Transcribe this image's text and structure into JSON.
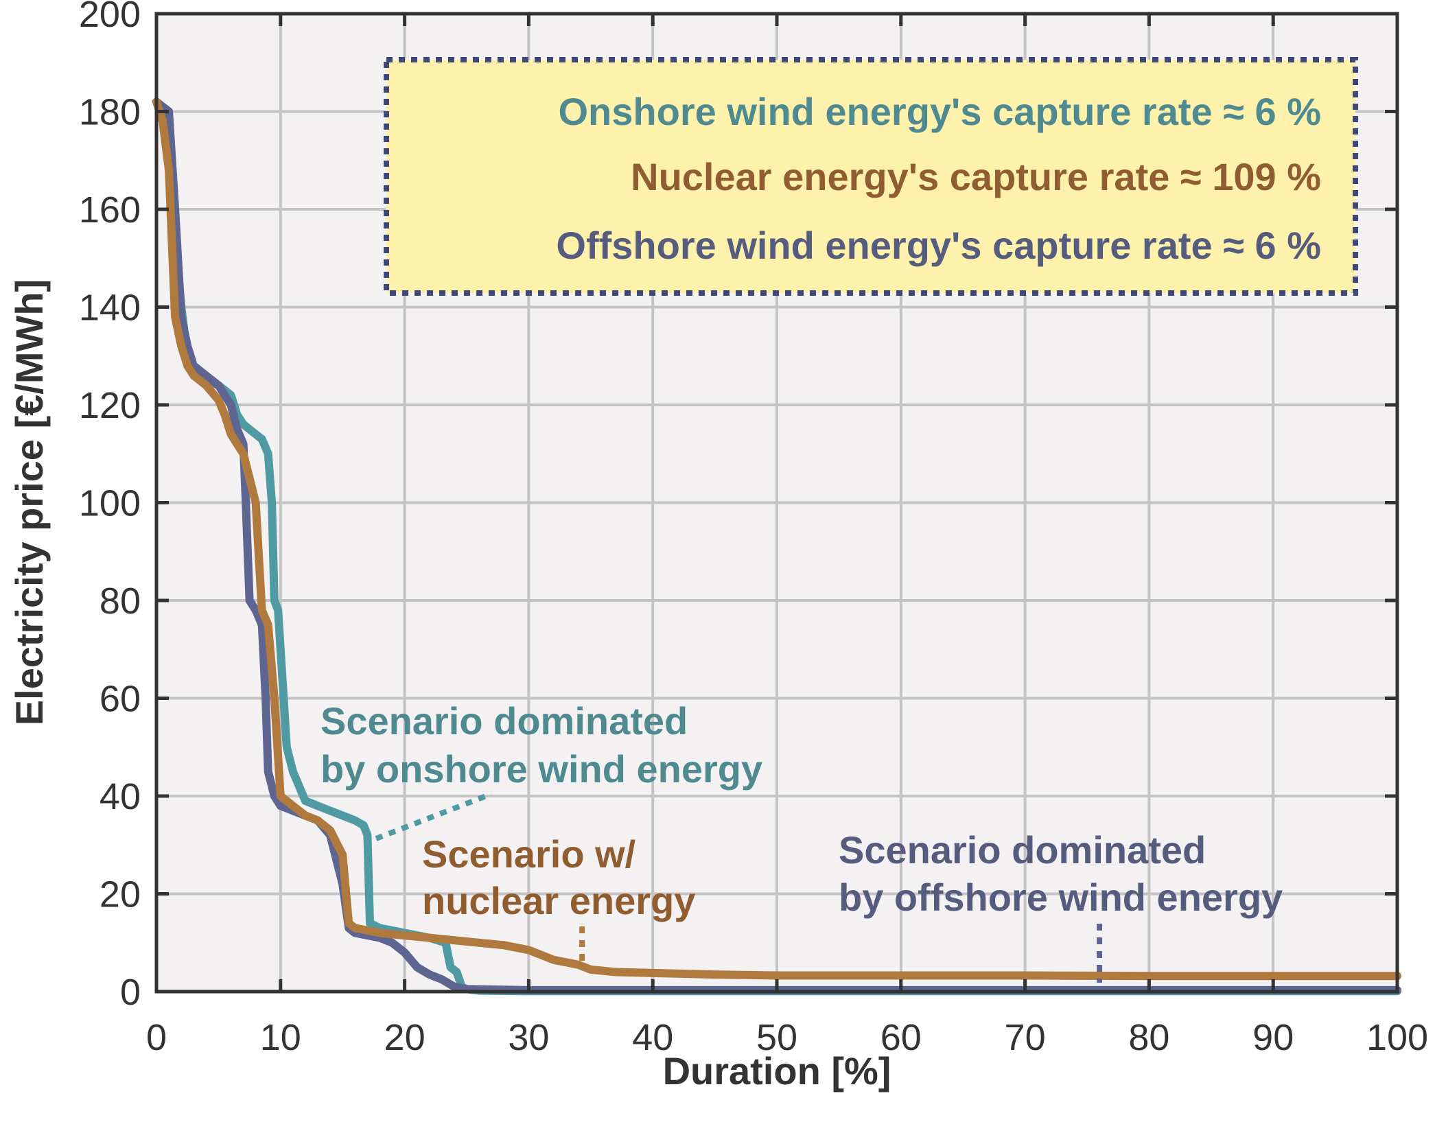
{
  "chart_data": {
    "type": "line",
    "xlabel": "Duration [%]",
    "ylabel": "Electricity price [€/MWh]",
    "xlim": [
      0,
      100
    ],
    "ylim": [
      0,
      200
    ],
    "xticks": [
      0,
      10,
      20,
      30,
      40,
      50,
      60,
      70,
      80,
      90,
      100
    ],
    "yticks": [
      0,
      20,
      40,
      60,
      80,
      100,
      120,
      140,
      160,
      180,
      200
    ],
    "grid": true,
    "colors": {
      "onshore": "#4f9aa3",
      "nuclear": "#b07a3f",
      "offshore": "#5d6590",
      "box_fill": "#fdf1ac",
      "box_border": "#3f4678",
      "plot_bg": "#f4f1f3",
      "grid": "#c4c4c4"
    },
    "series": [
      {
        "key": "onshore",
        "x": [
          0,
          0.5,
          1,
          1.5,
          2,
          2.5,
          3,
          4,
          5,
          6,
          6.5,
          7,
          7.5,
          8,
          8.5,
          9,
          9.3,
          9.5,
          9.8,
          10,
          10.5,
          11,
          11.5,
          12,
          13,
          14,
          15,
          16,
          16.7,
          17,
          17.2,
          18,
          20,
          22,
          23.3,
          23.7,
          24.2,
          24.6,
          25,
          26,
          30,
          100
        ],
        "y": [
          182,
          180,
          178,
          155,
          140,
          130,
          127,
          125,
          124,
          122,
          118,
          116,
          115,
          114,
          113,
          110,
          100,
          80,
          78,
          70,
          50,
          45,
          42,
          39,
          38,
          37,
          36,
          35,
          34,
          32,
          14,
          13,
          12,
          11,
          10,
          5,
          4,
          1,
          0.5,
          0.2,
          0.1,
          0.1
        ]
      },
      {
        "key": "nuclear",
        "x": [
          0,
          0.5,
          1,
          1.5,
          2,
          2.5,
          3,
          4,
          5,
          5.5,
          6,
          6.5,
          7,
          7.5,
          8,
          8.5,
          9,
          9.5,
          10,
          11,
          12,
          13,
          14,
          15,
          15.5,
          16,
          17,
          18,
          20,
          22,
          24,
          26,
          28,
          30,
          31,
          32,
          33,
          34,
          35,
          37,
          40,
          45,
          50,
          60,
          70,
          80,
          90,
          100
        ],
        "y": [
          182,
          178,
          168,
          138,
          132,
          128,
          126,
          124,
          121,
          118,
          114,
          112,
          110,
          105,
          100,
          78,
          75,
          60,
          40,
          38,
          36,
          35,
          33,
          28,
          14,
          13,
          12.5,
          12,
          11.5,
          11,
          10.5,
          10,
          9.5,
          8.5,
          7.5,
          6.5,
          6,
          5.5,
          4.5,
          4,
          3.8,
          3.5,
          3.3,
          3.3,
          3.3,
          3.2,
          3.2,
          3.2
        ]
      },
      {
        "key": "offshore",
        "x": [
          0,
          0.5,
          1,
          1.5,
          2,
          2.5,
          3,
          4,
          5,
          6,
          6.5,
          7,
          7.2,
          7.5,
          8,
          8.5,
          8.8,
          9,
          9.5,
          10,
          11,
          12,
          13,
          14,
          15,
          15.5,
          16,
          18,
          19,
          20,
          21,
          22,
          23,
          24,
          25,
          30,
          40,
          50,
          60,
          70,
          80,
          90,
          100
        ],
        "y": [
          182,
          181,
          180,
          160,
          138,
          132,
          128,
          126,
          124,
          120,
          115,
          112,
          100,
          80,
          78,
          75,
          60,
          45,
          40,
          38,
          37,
          36,
          35,
          32,
          22,
          13,
          12,
          11,
          10,
          8,
          5,
          3.5,
          2.5,
          1,
          0.5,
          0.3,
          0.3,
          0.3,
          0.3,
          0.3,
          0.3,
          0.3,
          0.3
        ]
      }
    ]
  },
  "legend_box": {
    "lines": [
      {
        "key": "onshore",
        "text": "Onshore wind energy's capture rate ≈ 6 %"
      },
      {
        "key": "nuclear",
        "text": "Nuclear energy's capture rate ≈ 109 %"
      },
      {
        "key": "offshore",
        "text": "Offshore wind energy's capture rate ≈ 6 %"
      }
    ]
  },
  "annotations": {
    "onshore": [
      "Scenario dominated",
      "by onshore wind energy"
    ],
    "nuclear": [
      "Scenario w/",
      "nuclear energy"
    ],
    "offshore": [
      "Scenario dominated",
      "by offshore wind energy"
    ]
  }
}
